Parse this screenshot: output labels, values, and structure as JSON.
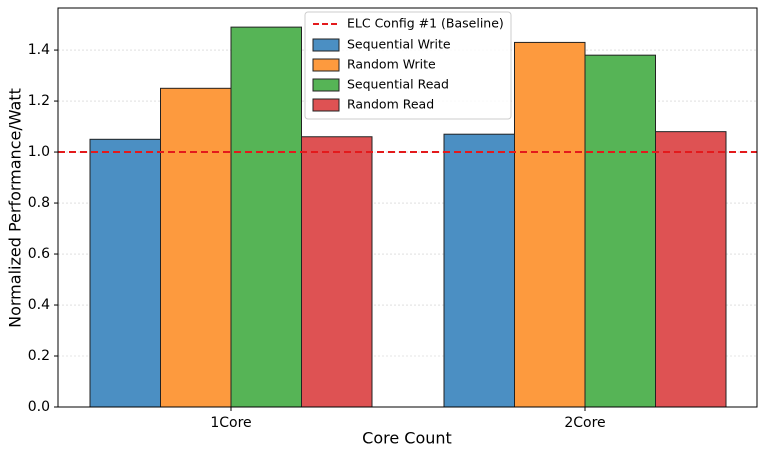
{
  "chart_data": {
    "type": "bar",
    "xlabel": "Core Count",
    "ylabel": "Normalized Performance/Watt",
    "categories": [
      "1Core",
      "2Core"
    ],
    "series": [
      {
        "name": "Sequential Write",
        "color": "#4b8fc3",
        "values": [
          1.05,
          1.07
        ]
      },
      {
        "name": "Random Write",
        "color": "#fd9a3e",
        "values": [
          1.25,
          1.43
        ]
      },
      {
        "name": "Sequential Read",
        "color": "#56b456",
        "values": [
          1.49,
          1.38
        ]
      },
      {
        "name": "Random Read",
        "color": "#de5253",
        "values": [
          1.06,
          1.08
        ]
      }
    ],
    "reference_line": {
      "name": "ELC Config #1 (Baseline)",
      "value": 1.0,
      "color": "#e31a1c"
    },
    "ylim": [
      0,
      1.565
    ],
    "yticks": [
      {
        "value": 0,
        "label": "0.0"
      },
      0.2,
      0.4,
      0.6,
      0.8,
      {
        "value": 1,
        "label": "1.0"
      },
      1.2,
      1.4
    ],
    "grid": true,
    "legend": "upper center"
  }
}
